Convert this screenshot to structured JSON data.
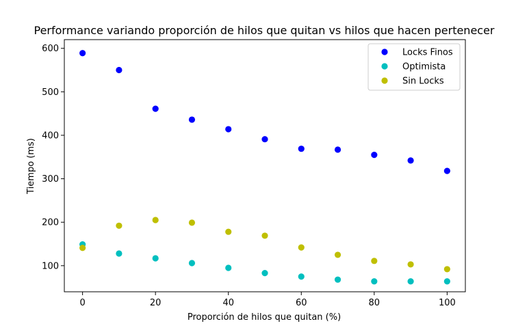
{
  "chart_data": {
    "type": "scatter",
    "title": "Performance variando proporción de hilos que quitan vs hilos que hacen pertenecer",
    "xlabel": "Proporción de hilos que quitan (%)",
    "ylabel": "Tiempo (ms)",
    "xlim": [
      -5,
      105
    ],
    "ylim": [
      40,
      620
    ],
    "xticks": [
      0,
      20,
      40,
      60,
      80,
      100
    ],
    "yticks": [
      100,
      200,
      300,
      400,
      500,
      600
    ],
    "grid": false,
    "legend_position": "top-right",
    "x": [
      0,
      10,
      20,
      30,
      40,
      50,
      60,
      70,
      80,
      90,
      100
    ],
    "series": [
      {
        "name": "Locks Finos",
        "color": "#0000ff",
        "values": [
          589,
          550,
          461,
          436,
          414,
          391,
          369,
          367,
          355,
          342,
          318
        ]
      },
      {
        "name": "Optimista",
        "color": "#00bfbf",
        "values": [
          149,
          128,
          117,
          106,
          95,
          83,
          75,
          68,
          64,
          64,
          64
        ]
      },
      {
        "name": "Sin Locks",
        "color": "#bfbf00",
        "values": [
          141,
          192,
          205,
          199,
          178,
          169,
          142,
          125,
          111,
          103,
          92
        ]
      }
    ]
  }
}
